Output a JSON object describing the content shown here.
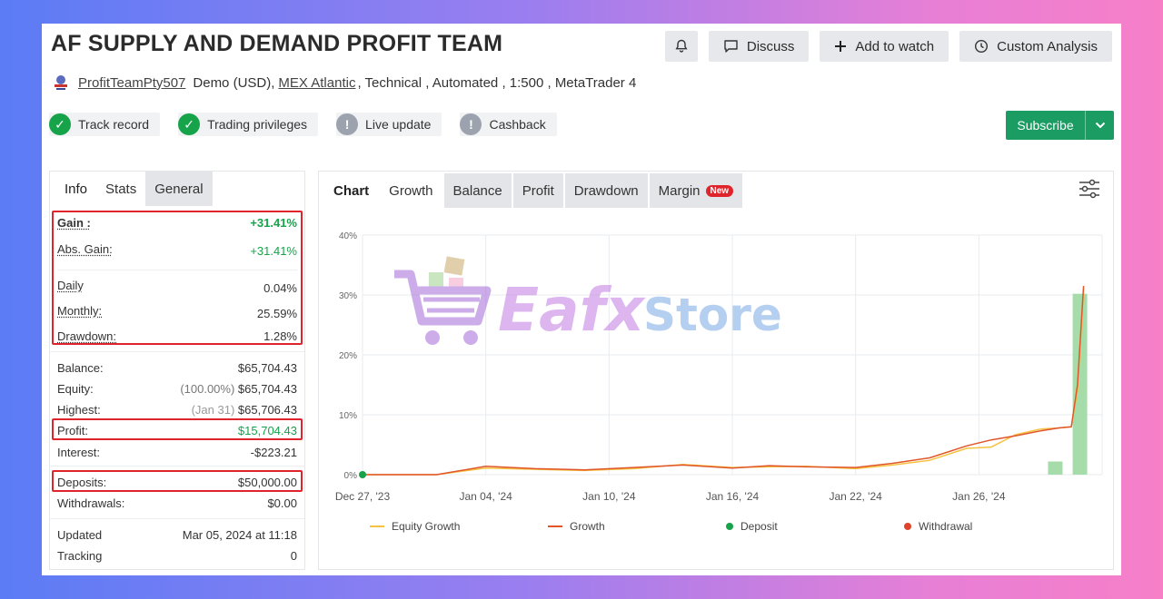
{
  "header": {
    "title": "AF SUPPLY AND DEMAND PROFIT TEAM",
    "actions": {
      "bell_icon": "bell-icon",
      "discuss": "Discuss",
      "add_watch": "Add to watch",
      "custom_analysis": "Custom Analysis"
    }
  },
  "account": {
    "owner": "ProfitTeamPty507",
    "type": "Demo (USD),",
    "broker": "MEX Atlantic",
    "details": ", Technical , Automated , 1:500 , MetaTrader 4"
  },
  "badges": [
    {
      "label": "Track record",
      "status": "ok"
    },
    {
      "label": "Trading privileges",
      "status": "ok"
    },
    {
      "label": "Live update",
      "status": "na"
    },
    {
      "label": "Cashback",
      "status": "na"
    }
  ],
  "subscribe": {
    "label": "Subscribe"
  },
  "info": {
    "tabs": [
      "Info",
      "Stats",
      "General"
    ],
    "gain": {
      "label": "Gain :",
      "value": "+31.41%"
    },
    "abs_gain": {
      "label": "Abs. Gain:",
      "value": "+31.41%"
    },
    "daily": {
      "label": "Daily",
      "value": "0.04%"
    },
    "monthly": {
      "label": "Monthly:",
      "value": "25.59%"
    },
    "drawdown": {
      "label": "Drawdown:",
      "value": "1.28%"
    },
    "balance": {
      "label": "Balance:",
      "value": "$65,704.43"
    },
    "equity": {
      "label": "Equity:",
      "pct": "(100.00%)",
      "value": "$65,704.43"
    },
    "highest": {
      "label": "Highest:",
      "date": "(Jan 31)",
      "value": "$65,706.43"
    },
    "profit": {
      "label": "Profit:",
      "value": "$15,704.43"
    },
    "interest": {
      "label": "Interest:",
      "value": "-$223.21"
    },
    "deposits": {
      "label": "Deposits:",
      "value": "$50,000.00"
    },
    "withdrawals": {
      "label": "Withdrawals:",
      "value": "$0.00"
    },
    "updated": {
      "label": "Updated",
      "value": "Mar 05, 2024 at 11:18"
    },
    "tracking": {
      "label": "Tracking",
      "value": "0"
    }
  },
  "chart_tabs": {
    "chart": "Chart",
    "growth": "Growth",
    "balance": "Balance",
    "profit": "Profit",
    "drawdown": "Drawdown",
    "margin": "Margin",
    "new_badge": "New"
  },
  "watermark": {
    "text_a": "Eafx",
    "text_b": "Store"
  },
  "chart_data": {
    "type": "line",
    "x_labels": [
      "Dec 27, '23",
      "Jan 04, '24",
      "Jan 10, '24",
      "Jan 16, '24",
      "Jan 22, '24",
      "Jan 26, '24"
    ],
    "ylim": [
      0,
      40
    ],
    "y_ticks": [
      "0%",
      "10%",
      "20%",
      "30%",
      "40%"
    ],
    "grid": true,
    "legend": [
      "Equity Growth",
      "Growth",
      "Deposit",
      "Withdrawal"
    ],
    "legend_placement": "bottom",
    "colors": {
      "equity": "#f5c242",
      "growth": "#e0562b",
      "deposit": "#16a34a",
      "withdrawal": "#e0422b",
      "bar": "#a6dcaa"
    },
    "series": [
      {
        "name": "Growth",
        "x": [
          0,
          0.6,
          1.0,
          1.4,
          1.8,
          2.2,
          2.6,
          3.0,
          3.3,
          3.6,
          4.0,
          4.3,
          4.6,
          4.9,
          5.1,
          5.3,
          5.5,
          5.65,
          5.75,
          5.8,
          5.85
        ],
        "values": [
          0,
          0,
          1.4,
          1.0,
          0.8,
          1.2,
          1.6,
          1.1,
          1.5,
          1.3,
          1.2,
          1.9,
          2.8,
          4.8,
          5.8,
          6.5,
          7.3,
          7.8,
          8.0,
          15,
          31.5
        ]
      },
      {
        "name": "Equity Growth",
        "x": [
          0,
          0.6,
          1.0,
          1.4,
          1.8,
          2.2,
          2.6,
          3.0,
          3.3,
          3.6,
          4.0,
          4.3,
          4.6,
          4.9,
          5.1,
          5.3,
          5.5,
          5.65,
          5.75,
          5.8,
          5.85
        ],
        "values": [
          0,
          0,
          1.1,
          0.9,
          0.7,
          1.0,
          1.7,
          1.2,
          1.3,
          1.4,
          1.0,
          1.6,
          2.4,
          4.4,
          4.6,
          6.7,
          7.6,
          7.8,
          8.0,
          14,
          31
        ]
      },
      {
        "name": "Deposit",
        "x": [
          5.62,
          5.82
        ],
        "values": [
          2.2,
          30.2
        ]
      }
    ]
  }
}
